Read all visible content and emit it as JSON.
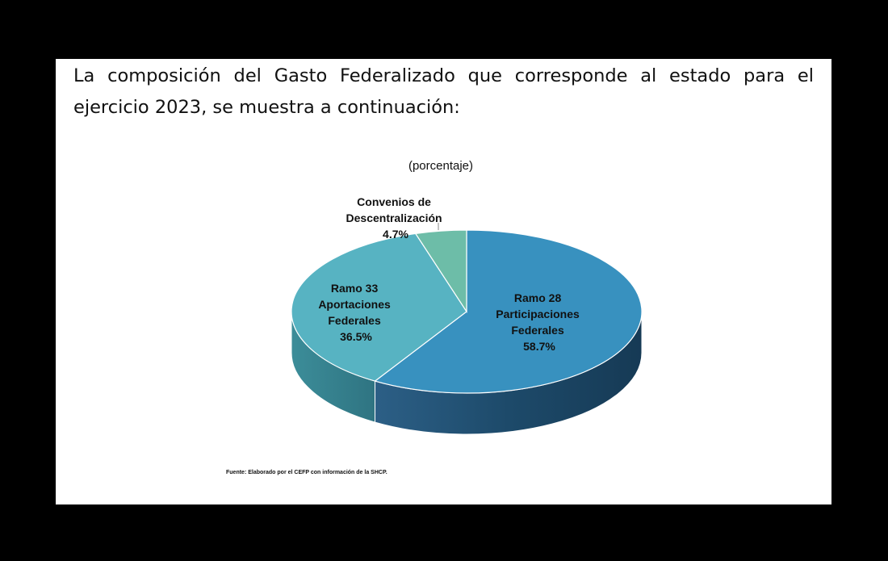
{
  "intro_text": "La composición del Gasto Federalizado que corresponde al estado para el ejercicio 2023, se muestra a continuación:",
  "chart_data": {
    "type": "pie",
    "subtitle": "(porcentaje)",
    "slices": [
      {
        "lines": [
          "Ramo 28",
          "Participaciones",
          "Federales"
        ],
        "value": 58.7,
        "value_label": "58.7%",
        "color": "#3891BF"
      },
      {
        "lines": [
          "Ramo 33",
          "Aportaciones",
          "Federales"
        ],
        "value": 36.5,
        "value_label": "36.5%",
        "color": "#57B3C2"
      },
      {
        "lines": [
          "Convenios de",
          "Descentralización"
        ],
        "value": 4.7,
        "value_label": "4.7%",
        "color": "#6DBDA8"
      }
    ],
    "source": "Fuente: Elaborado por el CEFP con información de la SHCP."
  }
}
